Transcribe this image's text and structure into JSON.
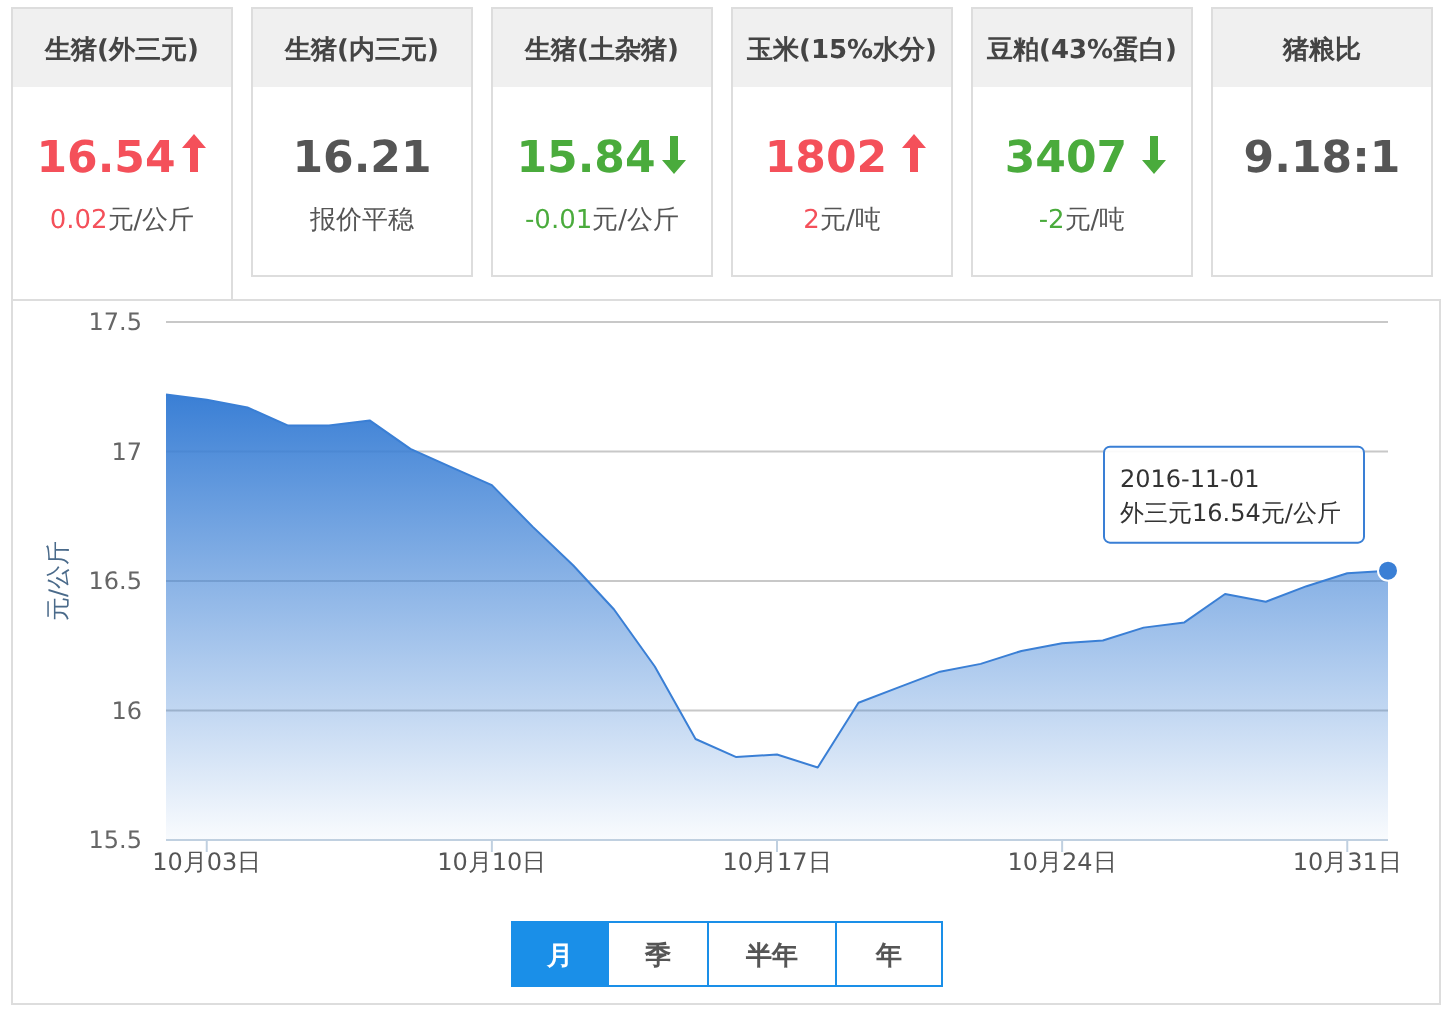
{
  "chart_data": [
    {
      "type": "other",
      "value_labels": [
        "16.54",
        "16.21",
        "15.84",
        "1802",
        "3407",
        "9.18:1"
      ],
      "colors": [
        "#f4505a",
        "#555555",
        "#4aab3c",
        "#f4505a",
        "#4aab3c",
        "#555555"
      ],
      "annotations": [
        "生猪(外三元)",
        "生猪(内三元)",
        "生猪(土杂猪)",
        "玉米(15%水分)",
        "豆粕(43%蛋白)",
        "猪粮比",
        "0.02元/公斤",
        "报价平稳",
        "-0.01元/公斤",
        "2元/吨",
        "-2元/吨"
      ]
    },
    {
      "type": "area",
      "ylabel": "元/公斤",
      "x": [
        "2016-10-02",
        "2016-10-03",
        "2016-10-04",
        "2016-10-05",
        "2016-10-06",
        "2016-10-07",
        "2016-10-08",
        "2016-10-09",
        "2016-10-10",
        "2016-10-11",
        "2016-10-12",
        "2016-10-13",
        "2016-10-14",
        "2016-10-15",
        "2016-10-16",
        "2016-10-17",
        "2016-10-18",
        "2016-10-19",
        "2016-10-20",
        "2016-10-21",
        "2016-10-22",
        "2016-10-23",
        "2016-10-24",
        "2016-10-25",
        "2016-10-26",
        "2016-10-27",
        "2016-10-28",
        "2016-10-29",
        "2016-10-30",
        "2016-10-31",
        "2016-11-01"
      ],
      "series": [
        {
          "color": "#3a7fd5",
          "values": [
            17.22,
            17.2,
            17.17,
            17.1,
            17.1,
            17.12,
            17.01,
            16.94,
            16.87,
            16.71,
            16.56,
            16.39,
            16.17,
            15.89,
            15.82,
            15.83,
            15.78,
            16.03,
            16.09,
            16.15,
            16.18,
            16.23,
            16.26,
            16.27,
            16.32,
            16.34,
            16.45,
            16.42,
            16.48,
            16.53,
            16.54
          ]
        }
      ],
      "xlim": [
        "2016-10-02",
        "2016-11-01"
      ],
      "xticks": [
        {
          "value": "2016-10-03",
          "label": "10月03日"
        },
        {
          "value": "2016-10-10",
          "label": "10月10日"
        },
        {
          "value": "2016-10-17",
          "label": "10月17日"
        },
        {
          "value": "2016-10-24",
          "label": "10月24日"
        },
        {
          "value": "2016-10-31",
          "label": "10月31日"
        }
      ],
      "ylim": [
        15.5,
        17.5
      ],
      "yticks": [
        15.5,
        16,
        16.5,
        17,
        17.5
      ],
      "grid": "y",
      "annotations": [
        {
          "text": "2016-11-01\n外三元16.54元/公斤",
          "x": "2016-11-01",
          "y": 16.54
        },
        "月",
        "季",
        "半年",
        "年"
      ]
    }
  ]
}
